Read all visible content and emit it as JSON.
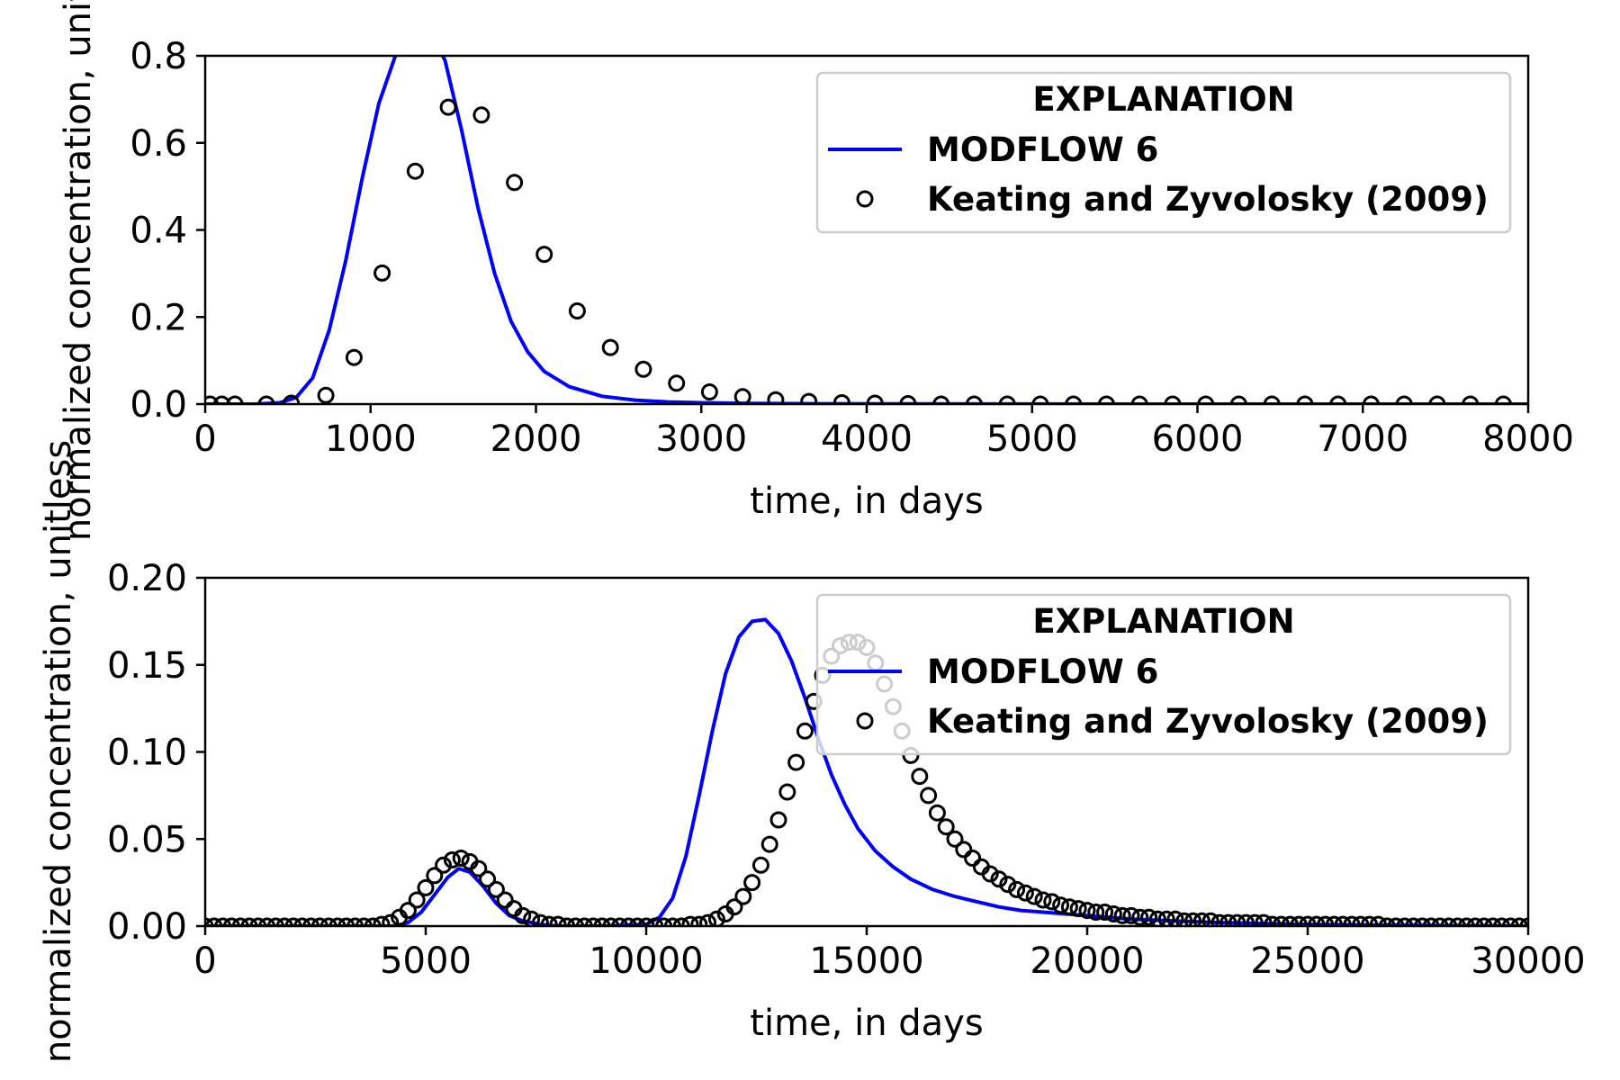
{
  "chart_data": [
    {
      "type": "line",
      "xlabel": "time, in days",
      "ylabel": "normalized concentration, unitless",
      "xlim": [
        0,
        8000
      ],
      "ylim": [
        0,
        0.8
      ],
      "xticks": [
        0,
        1000,
        2000,
        3000,
        4000,
        5000,
        6000,
        7000,
        8000
      ],
      "yticks": [
        0.0,
        0.2,
        0.4,
        0.6,
        0.8
      ],
      "xtick_labels": [
        "0",
        "1000",
        "2000",
        "3000",
        "4000",
        "5000",
        "6000",
        "7000",
        "8000"
      ],
      "ytick_labels": [
        "0.0",
        "0.2",
        "0.4",
        "0.6",
        "0.8"
      ],
      "grid": false,
      "legend": {
        "title": "EXPLANATION",
        "placement": "top-right",
        "entries": [
          "MODFLOW 6",
          "Keating and Zyvolosky (2009)"
        ]
      },
      "series": [
        {
          "name": "MODFLOW 6",
          "style": "line",
          "color": "#0000ff",
          "x": [
            0,
            300,
            450,
            550,
            650,
            750,
            850,
            950,
            1050,
            1150,
            1250,
            1350,
            1450,
            1550,
            1650,
            1750,
            1850,
            1950,
            2050,
            2200,
            2400,
            2600,
            2800,
            3000,
            3300,
            3700,
            4200,
            5000,
            6000,
            7000,
            8000
          ],
          "y": [
            0.0,
            0.0,
            0.003,
            0.015,
            0.06,
            0.17,
            0.33,
            0.52,
            0.69,
            0.8,
            0.86,
            0.86,
            0.79,
            0.63,
            0.45,
            0.3,
            0.19,
            0.12,
            0.075,
            0.04,
            0.018,
            0.009,
            0.005,
            0.003,
            0.0015,
            0.0008,
            0.0004,
            0.0002,
            0.0001,
            0.0,
            0.0
          ]
        },
        {
          "name": "Keating and Zyvolosky (2009)",
          "style": "markers",
          "color": "#000000",
          "x": [
            30,
            100,
            180,
            370,
            520,
            730,
            900,
            1070,
            1270,
            1470,
            1670,
            1870,
            2050,
            2250,
            2450,
            2650,
            2850,
            3050,
            3250,
            3450,
            3650,
            3850,
            4050,
            4250,
            4450,
            4650,
            4850,
            5050,
            5250,
            5450,
            5650,
            5850,
            6050,
            6250,
            6450,
            6650,
            6850,
            7050,
            7250,
            7450,
            7650,
            7850
          ],
          "y": [
            0.0,
            0.0,
            0.0,
            0.0,
            0.002,
            0.02,
            0.107,
            0.301,
            0.535,
            0.682,
            0.664,
            0.509,
            0.344,
            0.214,
            0.13,
            0.08,
            0.048,
            0.028,
            0.017,
            0.01,
            0.006,
            0.003,
            0.002,
            0.001,
            0.0,
            0.0,
            0.0,
            0.0,
            0.0,
            0.0,
            0.0,
            0.0,
            0.0,
            0.0,
            0.0,
            0.0,
            0.0,
            0.0,
            0.0,
            0.0,
            0.0,
            0.0
          ]
        }
      ]
    },
    {
      "type": "line",
      "xlabel": "time, in days",
      "ylabel": "normalized concentration, unitless",
      "xlim": [
        0,
        30000
      ],
      "ylim": [
        0,
        0.2
      ],
      "xticks": [
        0,
        5000,
        10000,
        15000,
        20000,
        25000,
        30000
      ],
      "yticks": [
        0.0,
        0.05,
        0.1,
        0.15,
        0.2
      ],
      "xtick_labels": [
        "0",
        "5000",
        "10000",
        "15000",
        "20000",
        "25000",
        "30000"
      ],
      "ytick_labels": [
        "0.00",
        "0.05",
        "0.10",
        "0.15",
        "0.20"
      ],
      "grid": false,
      "legend": {
        "title": "EXPLANATION",
        "placement": "top-right",
        "entries": [
          "MODFLOW 6",
          "Keating and Zyvolosky (2009)"
        ]
      },
      "series": [
        {
          "name": "MODFLOW 6",
          "style": "line",
          "color": "#0000ff",
          "x": [
            0,
            4300,
            4600,
            4900,
            5200,
            5500,
            5750,
            6000,
            6300,
            6600,
            6900,
            7200,
            7600,
            8000,
            9000,
            10000,
            10300,
            10600,
            10900,
            11200,
            11500,
            11800,
            12100,
            12400,
            12700,
            13000,
            13300,
            13600,
            13900,
            14200,
            14500,
            14800,
            15200,
            15600,
            16000,
            16500,
            17000,
            17500,
            18000,
            18500,
            19000,
            20000,
            21000,
            22000,
            23000,
            25000,
            27000,
            30000
          ],
          "y": [
            0.0,
            0.0,
            0.002,
            0.008,
            0.018,
            0.028,
            0.033,
            0.031,
            0.023,
            0.013,
            0.006,
            0.003,
            0.001,
            0.0,
            0.0,
            0.001,
            0.005,
            0.016,
            0.04,
            0.075,
            0.112,
            0.145,
            0.166,
            0.175,
            0.176,
            0.168,
            0.152,
            0.131,
            0.108,
            0.087,
            0.07,
            0.056,
            0.043,
            0.034,
            0.027,
            0.021,
            0.017,
            0.014,
            0.011,
            0.009,
            0.008,
            0.006,
            0.004,
            0.003,
            0.002,
            0.001,
            0.0005,
            0.0
          ]
        },
        {
          "name": "Keating and Zyvolosky (2009)",
          "style": "markers",
          "color": "#000000",
          "x": [
            0,
            200,
            400,
            600,
            800,
            1000,
            1200,
            1400,
            1600,
            1800,
            2000,
            2200,
            2400,
            2600,
            2800,
            3000,
            3200,
            3400,
            3600,
            3800,
            4000,
            4200,
            4400,
            4600,
            4800,
            5000,
            5200,
            5400,
            5600,
            5800,
            6000,
            6200,
            6400,
            6600,
            6800,
            7000,
            7200,
            7400,
            7600,
            7800,
            8000,
            8200,
            8400,
            8600,
            8800,
            9000,
            9200,
            9400,
            9600,
            9800,
            10000,
            10200,
            10400,
            10600,
            10800,
            11000,
            11200,
            11400,
            11600,
            11800,
            12000,
            12200,
            12400,
            12600,
            12800,
            13000,
            13200,
            13400,
            13600,
            13800,
            14000,
            14200,
            14400,
            14600,
            14800,
            15000,
            15200,
            15400,
            15600,
            15800,
            16000,
            16200,
            16400,
            16600,
            16800,
            17000,
            17200,
            17400,
            17600,
            17800,
            18000,
            18200,
            18400,
            18600,
            18800,
            19000,
            19200,
            19400,
            19600,
            19800,
            20000,
            20200,
            20400,
            20600,
            20800,
            21000,
            21200,
            21400,
            21600,
            21800,
            22000,
            22200,
            22400,
            22600,
            22800,
            23000,
            23200,
            23400,
            23600,
            23800,
            24000,
            24200,
            24400,
            24600,
            24800,
            25000,
            25200,
            25400,
            25600,
            25800,
            26000,
            26200,
            26400,
            26600,
            26800,
            27000,
            27200,
            27400,
            27600,
            27800,
            28000,
            28200,
            28400,
            28600,
            28800,
            29000,
            29200,
            29400,
            29600,
            29800,
            30000
          ],
          "y": [
            0.0,
            0.0,
            0.0,
            0.0,
            0.0,
            0.0,
            0.0,
            0.0,
            0.0,
            0.0,
            0.0,
            0.0,
            0.0,
            0.0,
            0.0,
            0.0,
            0.0,
            0.0,
            0.0,
            0.0,
            0.001,
            0.002,
            0.005,
            0.009,
            0.015,
            0.022,
            0.029,
            0.035,
            0.038,
            0.039,
            0.037,
            0.033,
            0.027,
            0.021,
            0.015,
            0.01,
            0.006,
            0.004,
            0.002,
            0.001,
            0.001,
            0.0,
            0.0,
            0.0,
            0.0,
            0.0,
            0.0,
            0.0,
            0.0,
            0.0,
            0.0,
            0.0,
            0.0,
            0.0,
            0.0,
            0.001,
            0.001,
            0.002,
            0.004,
            0.007,
            0.011,
            0.017,
            0.025,
            0.035,
            0.047,
            0.061,
            0.077,
            0.094,
            0.112,
            0.129,
            0.144,
            0.155,
            0.161,
            0.163,
            0.163,
            0.16,
            0.151,
            0.139,
            0.126,
            0.112,
            0.098,
            0.086,
            0.075,
            0.065,
            0.057,
            0.05,
            0.044,
            0.039,
            0.034,
            0.03,
            0.027,
            0.024,
            0.021,
            0.019,
            0.017,
            0.015,
            0.014,
            0.012,
            0.011,
            0.01,
            0.009,
            0.008,
            0.008,
            0.007,
            0.006,
            0.006,
            0.005,
            0.005,
            0.004,
            0.004,
            0.004,
            0.003,
            0.003,
            0.003,
            0.003,
            0.002,
            0.002,
            0.002,
            0.002,
            0.002,
            0.002,
            0.001,
            0.001,
            0.001,
            0.001,
            0.001,
            0.001,
            0.001,
            0.001,
            0.001,
            0.001,
            0.001,
            0.001,
            0.001,
            0.0,
            0.0,
            0.0,
            0.0,
            0.0,
            0.0,
            0.0,
            0.0,
            0.0,
            0.0,
            0.0,
            0.0,
            0.0,
            0.0,
            0.0,
            0.0,
            0.0
          ]
        }
      ]
    }
  ]
}
